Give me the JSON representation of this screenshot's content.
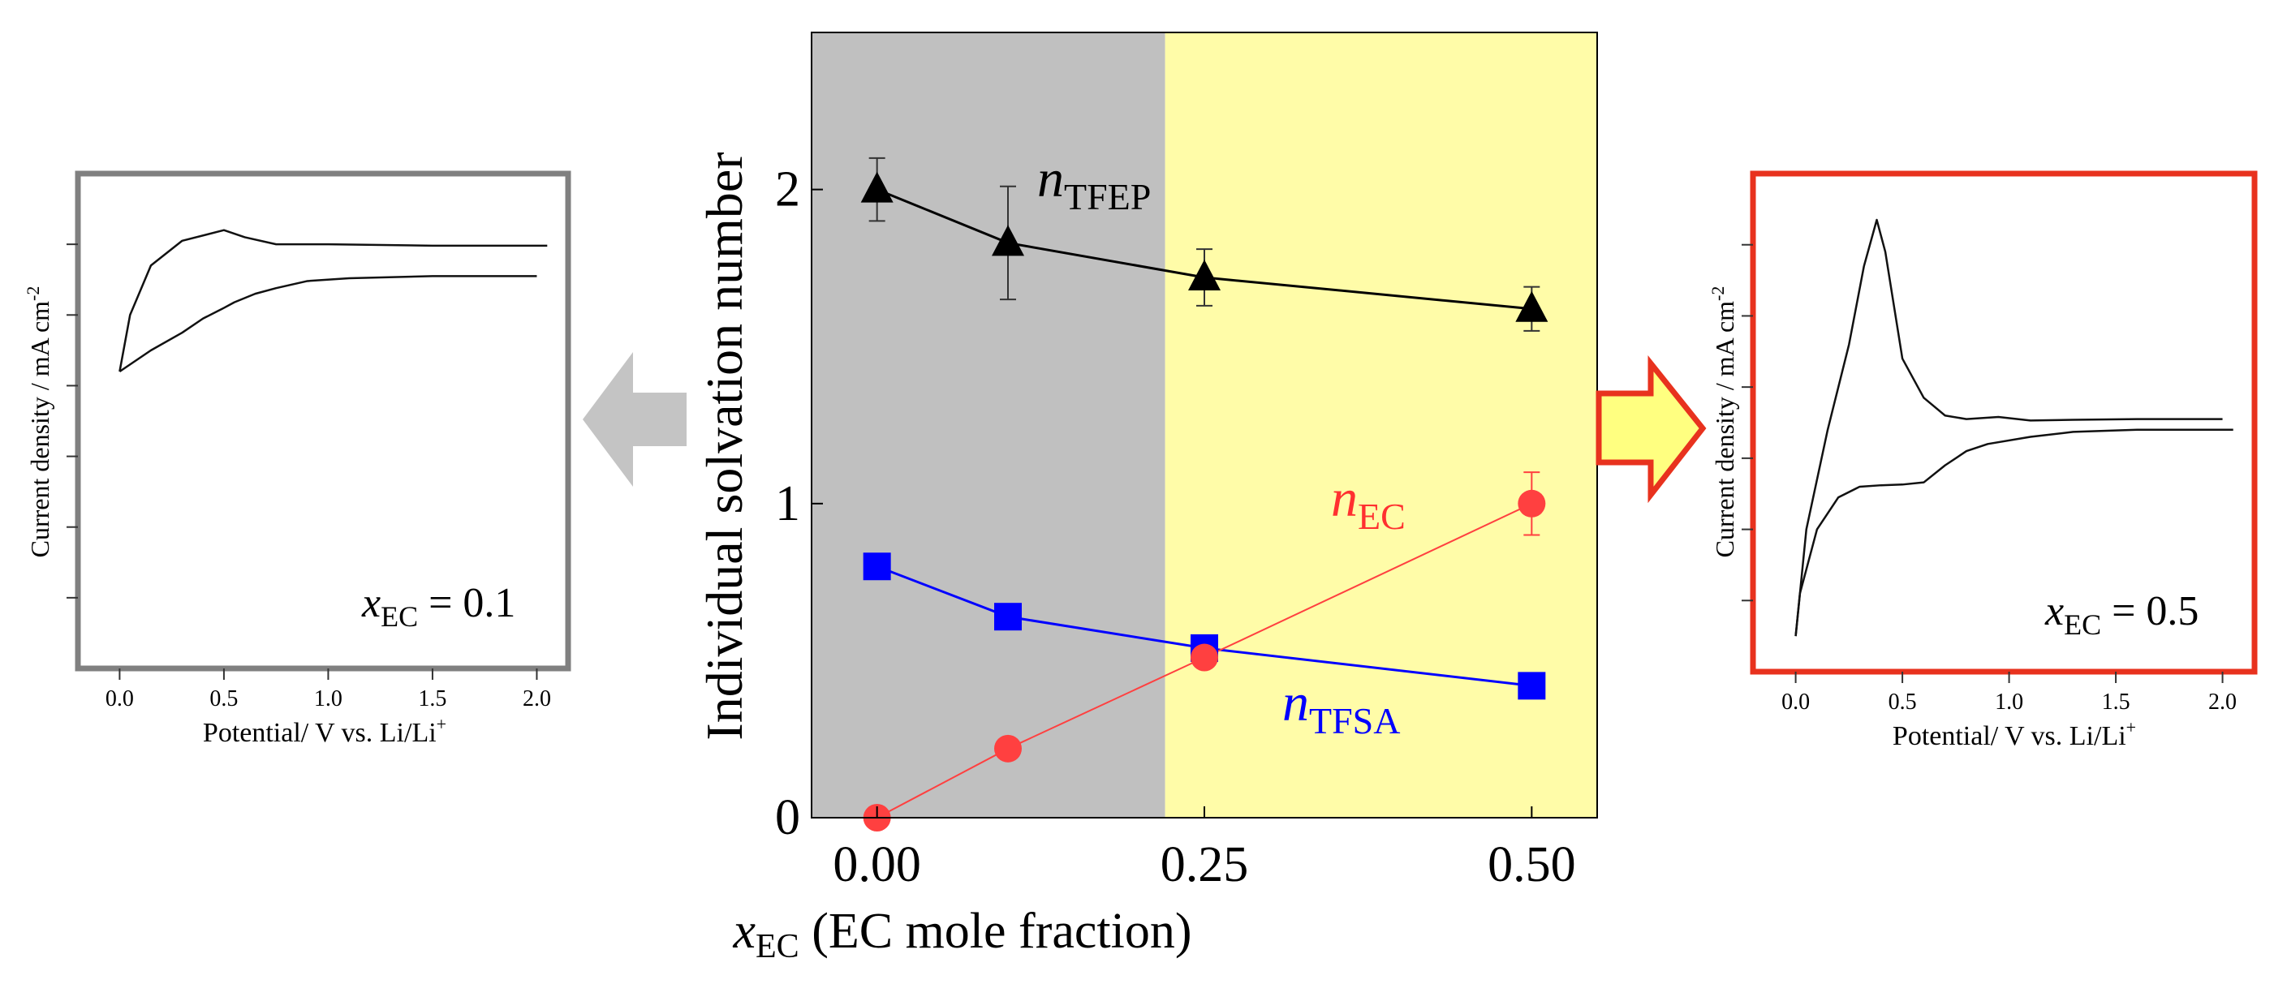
{
  "colors": {
    "gray_region": "#c0c0c0",
    "yellow_region": "#fffca8",
    "tfep": "#000000",
    "tfsa": "#0000ff",
    "ec": "#ff4040",
    "left_frame": "#808080",
    "right_frame": "#e8321e",
    "left_arrow": "#c4c4c4",
    "right_arrow_fill": "#ffff80",
    "right_arrow_stroke": "#e8321e"
  },
  "chart_data": [
    {
      "type": "scatter",
      "title": "",
      "xlabel_var": "x",
      "xlabel_sub": "EC",
      "xlabel_rest": " (EC mole fraction)",
      "ylabel": "Individual solvation number",
      "xlim": [
        -0.05,
        0.55
      ],
      "ylim": [
        0,
        2.5
      ],
      "x_ticks": [
        0.0,
        0.25,
        0.5
      ],
      "x_tick_labels": [
        "0.00",
        "0.25",
        "0.50"
      ],
      "y_ticks": [
        0,
        1,
        2
      ],
      "y_tick_labels": [
        "0",
        "1",
        "2"
      ],
      "grid": false,
      "shaded_regions": [
        {
          "from": -0.05,
          "to": 0.22,
          "color": "gray"
        },
        {
          "from": 0.22,
          "to": 0.55,
          "color": "yellow"
        }
      ],
      "series": [
        {
          "name_var": "n",
          "name_sub": "TFEP",
          "marker": "triangle",
          "x": [
            0.0,
            0.1,
            0.25,
            0.5
          ],
          "y": [
            2.0,
            1.83,
            1.72,
            1.62
          ],
          "error": [
            0.1,
            0.18,
            0.09,
            0.07
          ]
        },
        {
          "name_var": "n",
          "name_sub": "TFSA",
          "marker": "square",
          "x": [
            0.0,
            0.1,
            0.25,
            0.5
          ],
          "y": [
            0.8,
            0.64,
            0.54,
            0.42
          ],
          "error": [
            0,
            0,
            0,
            0
          ]
        },
        {
          "name_var": "n",
          "name_sub": "EC",
          "marker": "circle",
          "x": [
            0.0,
            0.1,
            0.25,
            0.5
          ],
          "y": [
            0.0,
            0.22,
            0.51,
            1.0
          ],
          "error": [
            0,
            0,
            0,
            0.1
          ]
        }
      ]
    },
    {
      "type": "line",
      "xlabel": "Potential/ V vs. Li/Li",
      "xlabel_sup": "+",
      "ylabel": "Current density / mA cm",
      "ylabel_sup": "-2",
      "x_ticks": [
        0.0,
        0.5,
        1.0,
        1.5,
        2.0
      ],
      "x_tick_labels": [
        "0.0",
        "0.5",
        "1.0",
        "1.5",
        "2.0"
      ],
      "xlim": [
        -0.2,
        2.15
      ],
      "ylim": [
        0,
        7
      ],
      "y_ticks": [
        1,
        2,
        3,
        4,
        5,
        6
      ],
      "label_var": "x",
      "label_sub": "EC",
      "label_rest": " = 0.1",
      "series": [
        {
          "x": [
            0.0,
            0.15,
            0.3,
            0.4,
            0.5,
            0.55,
            0.65,
            0.75,
            0.9,
            1.1,
            1.5,
            2.0
          ],
          "y": [
            4.2,
            4.5,
            4.75,
            4.95,
            5.1,
            5.18,
            5.3,
            5.38,
            5.48,
            5.52,
            5.55,
            5.55
          ]
        },
        {
          "x": [
            0.0,
            0.05,
            0.15,
            0.3,
            0.5,
            0.6,
            0.75,
            1.0,
            1.5,
            2.05
          ],
          "y": [
            4.2,
            5.0,
            5.7,
            6.05,
            6.2,
            6.1,
            6.0,
            6.0,
            5.98,
            5.98
          ]
        }
      ]
    },
    {
      "type": "line",
      "xlabel": "Potential/ V vs. Li/Li",
      "xlabel_sup": "+",
      "ylabel": "Current density / mA cm",
      "ylabel_sup": "-2",
      "x_ticks": [
        0.0,
        0.5,
        1.0,
        1.5,
        2.0
      ],
      "x_tick_labels": [
        "0.0",
        "0.5",
        "1.0",
        "1.5",
        "2.0"
      ],
      "xlim": [
        -0.2,
        2.15
      ],
      "ylim": [
        0,
        7
      ],
      "y_ticks": [
        1,
        2,
        3,
        4,
        5,
        6
      ],
      "label_var": "x",
      "label_sub": "EC",
      "label_rest": " = 0.5",
      "series": [
        {
          "x": [
            0.0,
            0.02,
            0.1,
            0.2,
            0.3,
            0.4,
            0.5,
            0.6,
            0.7,
            0.8,
            0.9,
            1.1,
            1.3,
            1.6,
            2.05
          ],
          "y": [
            0.5,
            1.1,
            2.0,
            2.45,
            2.6,
            2.62,
            2.63,
            2.66,
            2.9,
            3.1,
            3.2,
            3.3,
            3.37,
            3.4,
            3.4
          ]
        },
        {
          "x": [
            0.0,
            0.05,
            0.15,
            0.25,
            0.32,
            0.38,
            0.42,
            0.5,
            0.6,
            0.7,
            0.8,
            0.95,
            1.1,
            1.3,
            1.6,
            2.0
          ],
          "y": [
            0.5,
            2.0,
            3.4,
            4.6,
            5.7,
            6.35,
            5.9,
            4.4,
            3.85,
            3.6,
            3.55,
            3.58,
            3.53,
            3.54,
            3.55,
            3.55
          ]
        }
      ]
    }
  ]
}
